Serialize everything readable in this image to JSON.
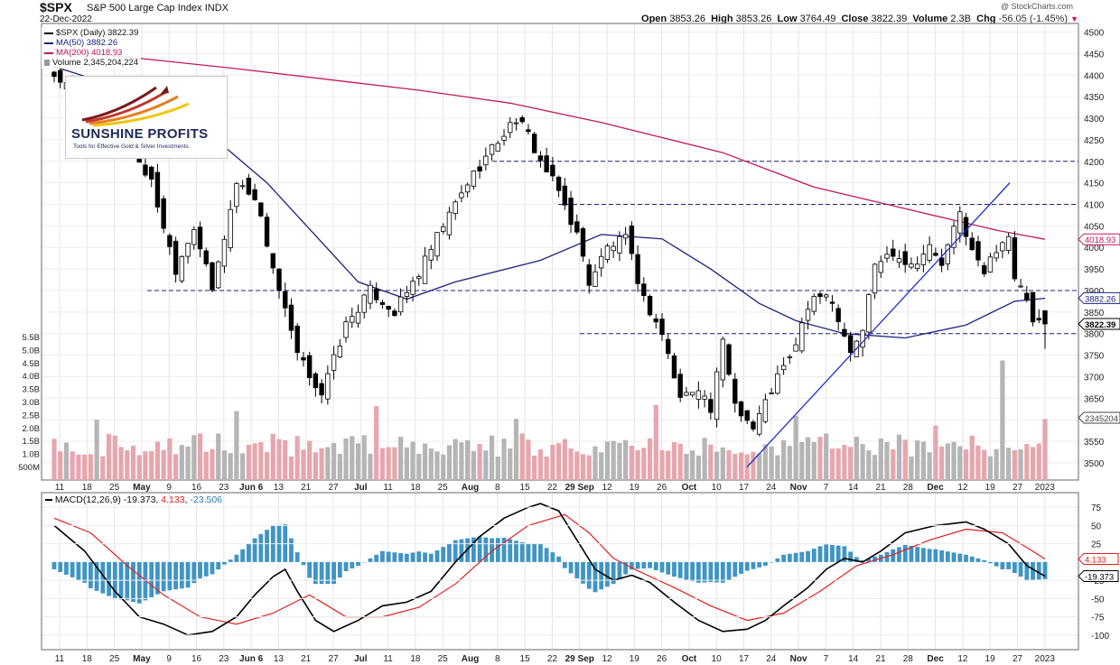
{
  "header": {
    "symbol": "$SPX",
    "subtitle": "S&P 500 Large Cap Index",
    "exchange": "INDX",
    "date": "22-Dec-2022",
    "credit": "@ StockCharts.com",
    "open_label": "Open",
    "open": "3853.26",
    "high_label": "High",
    "high": "3853.26",
    "low_label": "Low",
    "low": "3764.49",
    "close_label": "Close",
    "close": "3822.39",
    "volume_label": "Volume",
    "volume": "2.3B",
    "chg_label": "Chg",
    "chg": "-56.05 (-1.45%)"
  },
  "legend": {
    "price": "$SPX (Daily) 3822.39",
    "ma50": "MA(50) 3882.26",
    "ma200": "MA(200) 4018.93",
    "volume": "Volume 2,345,204,224"
  },
  "logo": {
    "word": "SUNSHINE PROFITS",
    "tagline": "Tools for Effective Gold & Silver Investments"
  },
  "macd_legend": {
    "name": "MACD(12,26,9)",
    "macd": "-19.373",
    "signal": "4.133",
    "hist": "-23.506"
  },
  "colors": {
    "ma50": "#1a237e",
    "ma200": "#c2185b",
    "trendline": "#1e2ccc",
    "dashed": "#1a237e",
    "vol_up": "#b5b5b5",
    "vol_down": "#e6a6ad",
    "hist": "#3f95c4",
    "macd": "#000000",
    "signal": "#e02020"
  },
  "chart_data": [
    {
      "type": "candlestick",
      "title": "$SPX (Daily)",
      "ylim": [
        3460,
        4520
      ],
      "y_ticks": [
        3500,
        3550,
        3600,
        3650,
        3700,
        3750,
        3800,
        3850,
        3900,
        3950,
        4000,
        4050,
        4100,
        4150,
        4200,
        4250,
        4300,
        4350,
        4400,
        4450,
        4500
      ],
      "volume_ticks": [
        "500M",
        "1.0B",
        "1.5B",
        "2.0B",
        "2.5B",
        "3.0B",
        "3.5B",
        "4.0B",
        "4.5B",
        "5.0B",
        "5.5B"
      ],
      "x_labels": [
        "11",
        "18",
        "25",
        "May",
        "9",
        "16",
        "23",
        "Jun 6",
        "13",
        "21",
        "27",
        "Jul",
        "11",
        "18",
        "25",
        "Aug",
        "8",
        "15",
        "22",
        "29 Sep",
        "12",
        "19",
        "26",
        "Oct",
        "10",
        "17",
        "24",
        "Nov",
        "7",
        "14",
        "21",
        "28",
        "Dec",
        "12",
        "19",
        "27",
        "2023"
      ],
      "price_tags": [
        {
          "label": "4018.93",
          "value": 4018.93,
          "series": "MA(200)"
        },
        {
          "label": "3882.26",
          "value": 3882.26,
          "series": "MA(50)"
        },
        {
          "label": "3822.39",
          "value": 3822.39,
          "series": "close"
        },
        {
          "label": "2345204",
          "value": 2345204,
          "series": "volume"
        }
      ],
      "horizontal_levels": [
        4200,
        4100,
        3900,
        3800
      ],
      "trendline": {
        "start": [
          "Oct 13",
          3490
        ],
        "end": [
          "Dec 22",
          4150
        ]
      },
      "waypoints": [
        {
          "d": 0,
          "c": 4400
        },
        {
          "d": 12,
          "c": 4250
        },
        {
          "d": 16,
          "c": 4150
        },
        {
          "d": 20,
          "c": 3950
        },
        {
          "d": 23,
          "c": 4050
        },
        {
          "d": 26,
          "c": 3900
        },
        {
          "d": 30,
          "c": 4150
        },
        {
          "d": 33,
          "c": 4120
        },
        {
          "d": 37,
          "c": 3900
        },
        {
          "d": 40,
          "c": 3750
        },
        {
          "d": 44,
          "c": 3660
        },
        {
          "d": 48,
          "c": 3820
        },
        {
          "d": 52,
          "c": 3900
        },
        {
          "d": 56,
          "c": 3850
        },
        {
          "d": 60,
          "c": 3940
        },
        {
          "d": 64,
          "c": 4050
        },
        {
          "d": 68,
          "c": 4150
        },
        {
          "d": 72,
          "c": 4230
        },
        {
          "d": 76,
          "c": 4300
        },
        {
          "d": 78,
          "c": 4260
        },
        {
          "d": 80,
          "c": 4200
        },
        {
          "d": 83,
          "c": 4130
        },
        {
          "d": 86,
          "c": 4030
        },
        {
          "d": 88,
          "c": 3920
        },
        {
          "d": 91,
          "c": 4000
        },
        {
          "d": 94,
          "c": 4020
        },
        {
          "d": 97,
          "c": 3880
        },
        {
          "d": 100,
          "c": 3800
        },
        {
          "d": 103,
          "c": 3650
        },
        {
          "d": 106,
          "c": 3680
        },
        {
          "d": 108,
          "c": 3620
        },
        {
          "d": 110,
          "c": 3780
        },
        {
          "d": 112,
          "c": 3640
        },
        {
          "d": 114,
          "c": 3600
        },
        {
          "d": 115,
          "c": 3580
        },
        {
          "d": 117,
          "c": 3640
        },
        {
          "d": 119,
          "c": 3700
        },
        {
          "d": 121,
          "c": 3740
        },
        {
          "d": 124,
          "c": 3860
        },
        {
          "d": 127,
          "c": 3900
        },
        {
          "d": 129,
          "c": 3840
        },
        {
          "d": 131,
          "c": 3760
        },
        {
          "d": 133,
          "c": 3810
        },
        {
          "d": 135,
          "c": 3960
        },
        {
          "d": 138,
          "c": 3990
        },
        {
          "d": 141,
          "c": 3960
        },
        {
          "d": 144,
          "c": 4000
        },
        {
          "d": 146,
          "c": 3960
        },
        {
          "d": 149,
          "c": 4080
        },
        {
          "d": 151,
          "c": 3990
        },
        {
          "d": 153,
          "c": 3940
        },
        {
          "d": 155,
          "c": 4000
        },
        {
          "d": 157,
          "c": 4030
        },
        {
          "d": 158,
          "c": 3920
        },
        {
          "d": 160,
          "c": 3880
        },
        {
          "d": 161,
          "c": 3820
        },
        {
          "d": 163,
          "c": 3822
        }
      ],
      "ma50": [
        {
          "d": 0,
          "v": 4420
        },
        {
          "d": 20,
          "v": 4330
        },
        {
          "d": 35,
          "v": 4150
        },
        {
          "d": 50,
          "v": 3920
        },
        {
          "d": 58,
          "v": 3880
        },
        {
          "d": 66,
          "v": 3920
        },
        {
          "d": 80,
          "v": 3970
        },
        {
          "d": 90,
          "v": 4030
        },
        {
          "d": 100,
          "v": 4020
        },
        {
          "d": 108,
          "v": 3950
        },
        {
          "d": 116,
          "v": 3870
        },
        {
          "d": 122,
          "v": 3830
        },
        {
          "d": 130,
          "v": 3800
        },
        {
          "d": 140,
          "v": 3790
        },
        {
          "d": 150,
          "v": 3820
        },
        {
          "d": 158,
          "v": 3875
        },
        {
          "d": 163,
          "v": 3882
        }
      ],
      "ma200": [
        {
          "d": 0,
          "v": 4460
        },
        {
          "d": 30,
          "v": 4415
        },
        {
          "d": 60,
          "v": 4365
        },
        {
          "d": 75,
          "v": 4335
        },
        {
          "d": 90,
          "v": 4290
        },
        {
          "d": 110,
          "v": 4220
        },
        {
          "d": 125,
          "v": 4140
        },
        {
          "d": 140,
          "v": 4090
        },
        {
          "d": 155,
          "v": 4040
        },
        {
          "d": 163,
          "v": 4019
        }
      ]
    },
    {
      "type": "line",
      "title": "MACD(12,26,9)",
      "ylim": [
        -120,
        95
      ],
      "y_ticks": [
        75,
        50,
        25,
        -25,
        -50,
        -75,
        -100
      ],
      "tags": [
        "4.133",
        "-19.373"
      ],
      "macd": [
        {
          "d": 0,
          "v": 50
        },
        {
          "d": 5,
          "v": 15
        },
        {
          "d": 10,
          "v": -40
        },
        {
          "d": 14,
          "v": -75
        },
        {
          "d": 18,
          "v": -85
        },
        {
          "d": 22,
          "v": -100
        },
        {
          "d": 26,
          "v": -95
        },
        {
          "d": 30,
          "v": -75
        },
        {
          "d": 33,
          "v": -45
        },
        {
          "d": 36,
          "v": -20
        },
        {
          "d": 38,
          "v": -10
        },
        {
          "d": 40,
          "v": -40
        },
        {
          "d": 43,
          "v": -80
        },
        {
          "d": 46,
          "v": -95
        },
        {
          "d": 50,
          "v": -80
        },
        {
          "d": 54,
          "v": -60
        },
        {
          "d": 58,
          "v": -55
        },
        {
          "d": 62,
          "v": -40
        },
        {
          "d": 66,
          "v": 0
        },
        {
          "d": 70,
          "v": 35
        },
        {
          "d": 74,
          "v": 60
        },
        {
          "d": 78,
          "v": 75
        },
        {
          "d": 80,
          "v": 80
        },
        {
          "d": 83,
          "v": 70
        },
        {
          "d": 86,
          "v": 30
        },
        {
          "d": 89,
          "v": -10
        },
        {
          "d": 92,
          "v": -25
        },
        {
          "d": 95,
          "v": -18
        },
        {
          "d": 98,
          "v": -28
        },
        {
          "d": 102,
          "v": -55
        },
        {
          "d": 106,
          "v": -80
        },
        {
          "d": 110,
          "v": -95
        },
        {
          "d": 114,
          "v": -92
        },
        {
          "d": 117,
          "v": -80
        },
        {
          "d": 120,
          "v": -60
        },
        {
          "d": 124,
          "v": -35
        },
        {
          "d": 127,
          "v": -10
        },
        {
          "d": 130,
          "v": 5
        },
        {
          "d": 133,
          "v": 0
        },
        {
          "d": 136,
          "v": 15
        },
        {
          "d": 140,
          "v": 40
        },
        {
          "d": 145,
          "v": 50
        },
        {
          "d": 150,
          "v": 55
        },
        {
          "d": 153,
          "v": 45
        },
        {
          "d": 157,
          "v": 25
        },
        {
          "d": 160,
          "v": -5
        },
        {
          "d": 163,
          "v": -19.373
        }
      ],
      "signal": [
        {
          "d": 0,
          "v": 60
        },
        {
          "d": 6,
          "v": 40
        },
        {
          "d": 12,
          "v": -5
        },
        {
          "d": 18,
          "v": -45
        },
        {
          "d": 24,
          "v": -75
        },
        {
          "d": 30,
          "v": -85
        },
        {
          "d": 36,
          "v": -70
        },
        {
          "d": 42,
          "v": -45
        },
        {
          "d": 48,
          "v": -75
        },
        {
          "d": 54,
          "v": -75
        },
        {
          "d": 60,
          "v": -62
        },
        {
          "d": 66,
          "v": -30
        },
        {
          "d": 72,
          "v": 15
        },
        {
          "d": 78,
          "v": 50
        },
        {
          "d": 84,
          "v": 65
        },
        {
          "d": 88,
          "v": 40
        },
        {
          "d": 92,
          "v": 5
        },
        {
          "d": 96,
          "v": -12
        },
        {
          "d": 102,
          "v": -35
        },
        {
          "d": 108,
          "v": -60
        },
        {
          "d": 114,
          "v": -80
        },
        {
          "d": 120,
          "v": -70
        },
        {
          "d": 126,
          "v": -40
        },
        {
          "d": 132,
          "v": -5
        },
        {
          "d": 138,
          "v": 10
        },
        {
          "d": 144,
          "v": 30
        },
        {
          "d": 150,
          "v": 45
        },
        {
          "d": 156,
          "v": 40
        },
        {
          "d": 160,
          "v": 20
        },
        {
          "d": 163,
          "v": 4.133
        }
      ]
    }
  ]
}
